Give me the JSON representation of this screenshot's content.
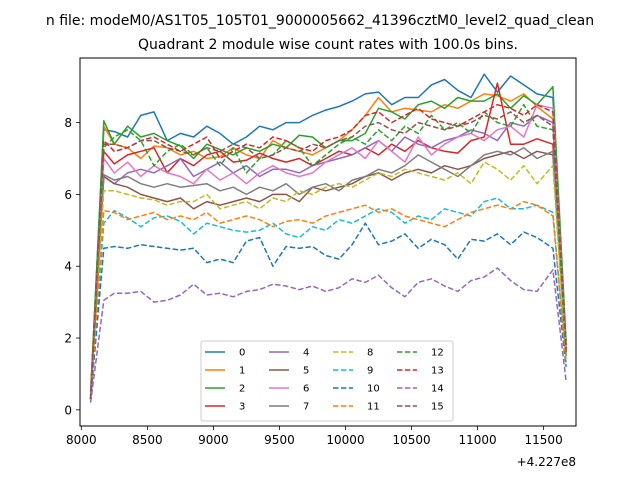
{
  "chart_data": {
    "type": "line",
    "suptitle": "n file: modeM0/AS1T05_105T01_9000005662_41396cztM0_level2_quad_clean",
    "title": "Quadrant 2 module wise count rates with 100.0s bins.",
    "xlabel": "",
    "ylabel": "",
    "x_offset_label": "+4.227e8",
    "xlim": [
      7990,
      11745
    ],
    "ylim": [
      -0.45,
      9.8
    ],
    "x_ticks": [
      8000,
      8500,
      9000,
      9500,
      10000,
      10500,
      11000,
      11500
    ],
    "y_ticks": [
      0,
      2,
      4,
      6,
      8
    ],
    "x_tick_labels": [
      "8000",
      "8500",
      "9000",
      "9500",
      "10000",
      "10500",
      "11000",
      "11500"
    ],
    "y_tick_labels": [
      "0",
      "2",
      "4",
      "6",
      "8"
    ],
    "legend_position": "lower-center",
    "legend_columns": 4,
    "x": [
      8070,
      8170,
      8250,
      8350,
      8450,
      8550,
      8650,
      8750,
      8850,
      8950,
      9050,
      9150,
      9250,
      9350,
      9450,
      9550,
      9650,
      9750,
      9850,
      9950,
      10050,
      10150,
      10250,
      10350,
      10450,
      10550,
      10650,
      10750,
      10850,
      10950,
      11050,
      11150,
      11250,
      11350,
      11450,
      11570,
      11670
    ],
    "series": [
      {
        "name": "0",
        "color": "#1f77b4",
        "dash": "solid",
        "values": [
          0.5,
          7.8,
          7.75,
          7.6,
          8.2,
          8.3,
          7.5,
          7.7,
          7.6,
          7.9,
          7.7,
          7.4,
          7.6,
          7.9,
          7.8,
          8.0,
          8.0,
          8.2,
          8.35,
          8.45,
          8.6,
          8.8,
          8.85,
          8.5,
          8.7,
          8.7,
          9.05,
          9.2,
          8.9,
          8.7,
          9.35,
          8.85,
          9.3,
          9.05,
          8.8,
          8.7,
          1.8
        ]
      },
      {
        "name": "1",
        "color": "#ff7f0e",
        "dash": "solid",
        "values": [
          0.4,
          7.9,
          7.4,
          7.3,
          7.0,
          7.35,
          7.3,
          7.1,
          7.2,
          7.0,
          7.05,
          7.3,
          7.1,
          7.0,
          7.5,
          7.3,
          7.2,
          7.1,
          7.3,
          7.5,
          7.8,
          8.2,
          8.7,
          8.3,
          8.4,
          8.35,
          8.3,
          8.5,
          8.4,
          8.6,
          8.8,
          8.75,
          8.6,
          8.8,
          8.45,
          8.1,
          1.6
        ]
      },
      {
        "name": "2",
        "color": "#2ca02c",
        "dash": "solid",
        "values": [
          0.4,
          8.05,
          7.4,
          7.9,
          7.6,
          7.7,
          7.5,
          7.35,
          7.0,
          7.4,
          7.25,
          7.1,
          7.3,
          7.2,
          7.4,
          7.3,
          7.65,
          7.6,
          7.3,
          7.5,
          7.5,
          7.7,
          8.4,
          8.3,
          8.1,
          8.5,
          8.6,
          8.4,
          8.7,
          8.6,
          8.6,
          8.8,
          8.4,
          8.75,
          8.5,
          9.0,
          1.9
        ]
      },
      {
        "name": "3",
        "color": "#d62728",
        "dash": "solid",
        "values": [
          0.3,
          7.2,
          6.85,
          7.1,
          7.2,
          7.3,
          6.6,
          7.0,
          6.8,
          7.1,
          7.2,
          6.9,
          6.95,
          7.15,
          7.0,
          6.9,
          7.0,
          6.8,
          7.0,
          7.2,
          7.1,
          7.3,
          7.1,
          7.4,
          7.2,
          7.5,
          7.3,
          7.2,
          7.15,
          7.5,
          7.6,
          9.1,
          7.4,
          7.4,
          7.55,
          7.4,
          1.7
        ]
      },
      {
        "name": "4",
        "color": "#9467bd",
        "dash": "solid",
        "values": [
          0.3,
          6.5,
          6.3,
          6.6,
          6.7,
          6.6,
          6.8,
          7.0,
          6.5,
          6.7,
          6.9,
          6.6,
          6.8,
          6.5,
          6.7,
          6.7,
          6.6,
          6.8,
          6.9,
          7.0,
          7.1,
          7.3,
          7.5,
          7.2,
          7.6,
          7.4,
          7.3,
          7.5,
          7.6,
          7.8,
          7.7,
          7.5,
          8.0,
          7.9,
          8.2,
          8.0,
          1.6
        ]
      },
      {
        "name": "5",
        "color": "#8c564b",
        "dash": "solid",
        "values": [
          0.3,
          6.5,
          6.3,
          6.2,
          6.0,
          5.9,
          5.8,
          5.9,
          5.6,
          5.8,
          5.7,
          5.8,
          5.9,
          5.8,
          6.0,
          6.0,
          5.8,
          6.2,
          6.1,
          6.2,
          6.3,
          6.5,
          6.6,
          6.4,
          6.6,
          6.7,
          6.6,
          6.8,
          6.7,
          6.8,
          7.0,
          7.1,
          7.2,
          7.0,
          7.2,
          7.1,
          1.5
        ]
      },
      {
        "name": "6",
        "color": "#e377c2",
        "dash": "solid",
        "values": [
          0.3,
          7.0,
          6.6,
          6.9,
          6.5,
          6.8,
          6.6,
          6.5,
          6.3,
          6.7,
          6.4,
          6.6,
          6.3,
          6.6,
          6.8,
          6.6,
          6.5,
          6.6,
          6.9,
          7.1,
          7.3,
          7.0,
          7.5,
          7.2,
          6.9,
          7.6,
          7.1,
          7.4,
          7.6,
          7.7,
          7.5,
          7.8,
          7.9,
          7.6,
          8.5,
          8.4,
          1.7
        ]
      },
      {
        "name": "7",
        "color": "#7f7f7f",
        "dash": "solid",
        "values": [
          0.3,
          6.55,
          6.4,
          6.5,
          6.3,
          6.2,
          6.3,
          6.2,
          6.25,
          6.3,
          6.1,
          6.2,
          6.0,
          6.2,
          6.1,
          6.3,
          6.0,
          6.2,
          6.3,
          6.1,
          6.4,
          6.5,
          6.7,
          6.6,
          6.8,
          7.1,
          6.9,
          6.7,
          6.5,
          6.8,
          7.1,
          7.2,
          7.1,
          7.3,
          7.0,
          7.2,
          1.5
        ]
      },
      {
        "name": "8",
        "color": "#bcbd22",
        "dash": "dashed",
        "values": [
          0.3,
          6.1,
          6.1,
          6.0,
          5.9,
          5.85,
          5.7,
          5.8,
          5.8,
          6.0,
          5.6,
          5.7,
          5.8,
          5.6,
          5.9,
          5.8,
          6.1,
          6.0,
          6.2,
          6.3,
          6.2,
          6.4,
          6.6,
          6.5,
          6.7,
          6.6,
          6.5,
          6.4,
          6.6,
          6.3,
          6.9,
          6.7,
          6.4,
          6.8,
          6.3,
          6.8,
          1.4
        ]
      },
      {
        "name": "9",
        "color": "#17becf",
        "dash": "dashed",
        "values": [
          0.3,
          5.2,
          5.55,
          5.35,
          5.1,
          5.35,
          5.4,
          5.25,
          4.9,
          5.2,
          5.1,
          5.0,
          4.95,
          5.0,
          5.2,
          4.9,
          4.8,
          5.1,
          5.0,
          5.3,
          5.2,
          5.4,
          5.6,
          5.5,
          5.2,
          5.4,
          5.3,
          5.6,
          5.5,
          5.4,
          5.8,
          5.9,
          5.6,
          5.6,
          5.7,
          5.5,
          1.3
        ]
      },
      {
        "name": "10",
        "color": "#1f77b4",
        "dash": "dashed",
        "values": [
          0.3,
          4.5,
          4.55,
          4.5,
          4.6,
          4.55,
          4.5,
          4.45,
          4.5,
          4.1,
          4.2,
          4.1,
          4.7,
          4.8,
          4.0,
          4.55,
          4.5,
          4.55,
          4.3,
          4.2,
          4.6,
          5.2,
          4.6,
          4.7,
          4.9,
          4.5,
          4.75,
          4.6,
          4.2,
          4.75,
          4.7,
          4.9,
          4.6,
          4.95,
          4.8,
          4.5,
          1.2
        ]
      },
      {
        "name": "11",
        "color": "#ff7f0e",
        "dash": "dashed",
        "values": [
          0.3,
          5.55,
          5.5,
          5.3,
          5.4,
          5.5,
          5.3,
          5.4,
          5.3,
          5.5,
          5.2,
          5.3,
          5.4,
          5.3,
          5.1,
          5.25,
          5.3,
          5.2,
          5.4,
          5.5,
          5.6,
          5.7,
          5.5,
          5.6,
          5.4,
          5.3,
          5.2,
          5.1,
          5.3,
          5.5,
          5.6,
          5.7,
          5.6,
          5.8,
          5.7,
          5.4,
          1.3
        ]
      },
      {
        "name": "12",
        "color": "#2ca02c",
        "dash": "dashed",
        "values": [
          0.3,
          7.3,
          7.6,
          7.8,
          7.5,
          6.8,
          7.2,
          7.4,
          7.1,
          7.3,
          6.8,
          7.3,
          6.6,
          7.0,
          7.1,
          7.5,
          7.3,
          6.8,
          7.1,
          7.4,
          7.6,
          7.4,
          7.8,
          7.5,
          7.9,
          7.7,
          8.2,
          7.8,
          8.0,
          7.7,
          8.3,
          8.0,
          7.9,
          8.5,
          7.9,
          7.8,
          1.6
        ]
      },
      {
        "name": "13",
        "color": "#d62728",
        "dash": "dashed",
        "values": [
          0.3,
          7.5,
          7.2,
          7.3,
          7.5,
          7.6,
          7.4,
          7.2,
          7.4,
          7.6,
          7.0,
          7.2,
          7.4,
          7.3,
          7.6,
          7.5,
          7.3,
          7.2,
          7.5,
          7.6,
          7.8,
          8.2,
          8.3,
          8.0,
          8.2,
          8.4,
          8.1,
          8.0,
          7.9,
          8.1,
          8.3,
          8.5,
          8.4,
          8.2,
          8.5,
          8.3,
          1.7
        ]
      },
      {
        "name": "14",
        "color": "#9467bd",
        "dash": "dashed",
        "values": [
          0.2,
          3.05,
          3.25,
          3.25,
          3.3,
          3.0,
          3.05,
          3.2,
          3.5,
          3.2,
          3.25,
          3.15,
          3.3,
          3.35,
          3.5,
          3.45,
          3.35,
          3.45,
          3.3,
          3.4,
          3.65,
          3.55,
          3.75,
          3.4,
          3.15,
          3.55,
          3.65,
          3.45,
          3.3,
          3.6,
          3.7,
          3.95,
          3.6,
          3.35,
          3.3,
          3.9,
          0.8
        ]
      },
      {
        "name": "15",
        "color": "#8c564b",
        "dash": "dashed",
        "values": [
          0.3,
          7.4,
          7.4,
          7.3,
          7.5,
          7.5,
          7.3,
          7.2,
          7.1,
          7.3,
          7.2,
          7.4,
          7.3,
          7.0,
          7.1,
          7.3,
          7.2,
          7.4,
          7.3,
          7.5,
          7.6,
          7.9,
          8.0,
          7.8,
          7.7,
          8.0,
          7.9,
          7.8,
          7.9,
          8.0,
          8.2,
          8.1,
          8.3,
          8.0,
          8.2,
          7.9,
          1.8
        ]
      }
    ]
  }
}
